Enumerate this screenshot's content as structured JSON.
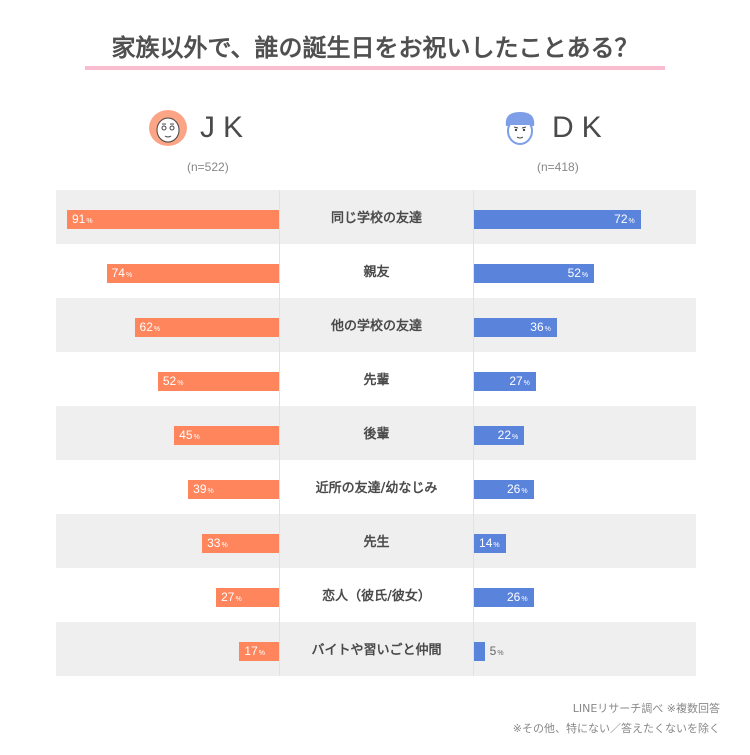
{
  "title": "家族以外で、誰の誕生日をお祝いしたことある？",
  "groups": {
    "jk": {
      "label": "JK",
      "n": "(n=522)",
      "icon": "girl-face-icon",
      "color": "#fe855c"
    },
    "dk": {
      "label": "DK",
      "n": "(n=418)",
      "icon": "boy-face-icon",
      "color": "#5a83dc"
    }
  },
  "rows": [
    {
      "category": "同じ学校の友達",
      "jk": "91",
      "dk": "72"
    },
    {
      "category": "親友",
      "jk": "74",
      "dk": "52"
    },
    {
      "category": "他の学校の友達",
      "jk": "62",
      "dk": "36"
    },
    {
      "category": "先輩",
      "jk": "52",
      "dk": "27"
    },
    {
      "category": "後輩",
      "jk": "45",
      "dk": "22"
    },
    {
      "category": "近所の友達/幼なじみ",
      "jk": "39",
      "dk": "26"
    },
    {
      "category": "先生",
      "jk": "33",
      "dk": "14"
    },
    {
      "category": "恋人（彼氏/彼女）",
      "jk": "27",
      "dk": "26"
    },
    {
      "category": "バイトや習いごと仲間",
      "jk": "17",
      "dk": "5"
    }
  ],
  "pct_symbol": "%",
  "footer": {
    "source": "LINEリサーチ調べ ※複数回答",
    "note": "※その他、特にない／答えたくないを除く"
  },
  "chart_data": {
    "type": "bar",
    "orientation": "horizontal-butterfly",
    "title": "家族以外で、誰の誕生日をお祝いしたことある？",
    "categories": [
      "同じ学校の友達",
      "親友",
      "他の学校の友達",
      "先輩",
      "後輩",
      "近所の友達/幼なじみ",
      "先生",
      "恋人（彼氏/彼女）",
      "バイトや習いごと仲間"
    ],
    "series": [
      {
        "name": "JK (n=522)",
        "color": "#fe855c",
        "values": [
          91,
          74,
          62,
          52,
          45,
          39,
          33,
          27,
          17
        ]
      },
      {
        "name": "DK (n=418)",
        "color": "#5a83dc",
        "values": [
          72,
          52,
          36,
          27,
          22,
          26,
          14,
          26,
          5
        ]
      }
    ],
    "unit": "%",
    "xlabel": "",
    "ylabel": "",
    "xlim": [
      0,
      100
    ],
    "grid": false,
    "legend": "top (group headers with avatars)",
    "annotations": [
      "LINEリサーチ調べ ※複数回答",
      "※その他、特にない／答えたくないを除く"
    ]
  }
}
